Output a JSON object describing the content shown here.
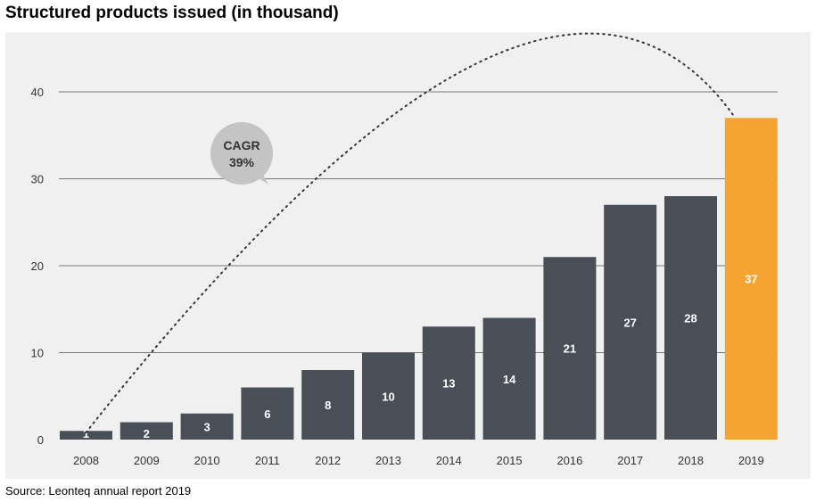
{
  "title": "Structured products issued (in thousand)",
  "source": "Source: Leonteq annual report 2019",
  "annotation": {
    "line1": "CAGR",
    "line2": "39%"
  },
  "colors": {
    "bar": "#4a4f57",
    "highlight": "#f5a431",
    "grid": "#777777",
    "bubble": "#c4c4c4",
    "panel": "#f0f0f0"
  },
  "chart_data": {
    "type": "bar",
    "title": "Structured products issued (in thousand)",
    "categories": [
      "2008",
      "2009",
      "2010",
      "2011",
      "2012",
      "2013",
      "2014",
      "2015",
      "2016",
      "2017",
      "2018",
      "2019"
    ],
    "values": [
      1,
      2,
      3,
      6,
      8,
      10,
      13,
      14,
      21,
      27,
      28,
      37
    ],
    "value_labels": [
      "1",
      "2",
      "3",
      "6",
      "8",
      "10",
      "13",
      "14",
      "21",
      "27",
      "28",
      "37"
    ],
    "highlight_index": 11,
    "yticks": [
      0,
      10,
      20,
      30,
      40
    ],
    "ylim": [
      0,
      45
    ],
    "grid": true
  }
}
